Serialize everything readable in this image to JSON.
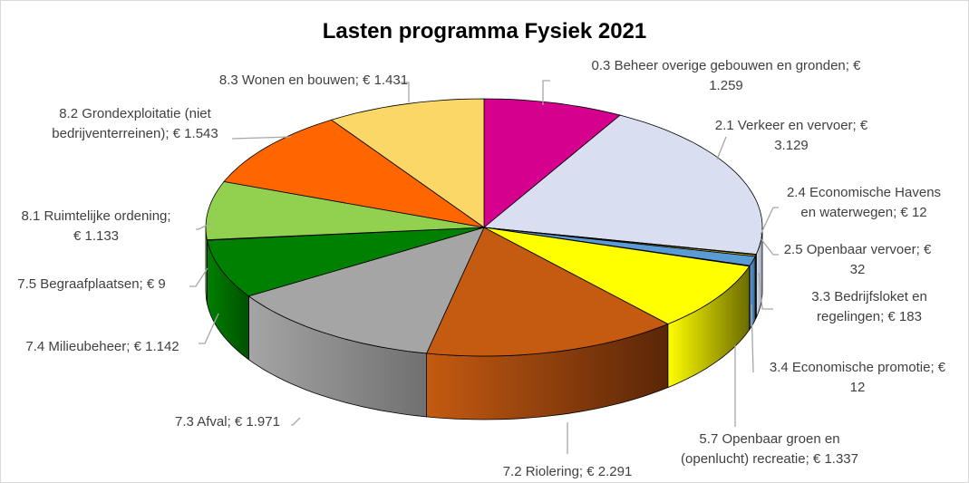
{
  "chart_data": {
    "type": "pie",
    "title": "Lasten programma Fysiek 2021",
    "currency": "€",
    "slices": [
      {
        "label": "0.3 Beheer overige gebouwen en gronden",
        "value": 1259,
        "display": "€ 1.259",
        "color": "#d6008f",
        "side": "#8a005c"
      },
      {
        "label": "2.1 Verkeer en vervoer",
        "value": 3129,
        "display": "€ 3.129",
        "color": "#d9dff0",
        "side": "#9aa0b0"
      },
      {
        "label": "2.4 Economische Havens en waterwegen",
        "value": 12,
        "display": "€ 12",
        "color": "#f0a030",
        "side": "#a06a10"
      },
      {
        "label": "2.5 Openbaar vervoer",
        "value": 32,
        "display": "€ 32",
        "color": "#c8b400",
        "side": "#807300"
      },
      {
        "label": "3.3 Bedrijfsloket en regelingen",
        "value": 183,
        "display": "€ 183",
        "color": "#5b9bd5",
        "side": "#3a6a96"
      },
      {
        "label": "3.4 Economische promotie",
        "value": 12,
        "display": "€ 12",
        "color": "#e0e000",
        "side": "#707000"
      },
      {
        "label": "5.7 Openbaar groen en (openlucht) recreatie",
        "value": 1337,
        "display": "€ 1.337",
        "color": "#ffff00",
        "side": "#6b6b00"
      },
      {
        "label": "7.2 Riolering",
        "value": 2291,
        "display": "€ 2.291",
        "color": "#c55a11",
        "side": "#5a2608"
      },
      {
        "label": "7.3 Afval",
        "value": 1971,
        "display": "€ 1.971",
        "color": "#a5a5a5",
        "side": "#707070"
      },
      {
        "label": "7.4 Milieubeheer",
        "value": 1142,
        "display": "€ 1.142",
        "color": "#008000",
        "side": "#005000"
      },
      {
        "label": "7.5 Begraafplaatsen",
        "value": 9,
        "display": "€ 9",
        "color": "#6a9a30",
        "side": "#3a5a10"
      },
      {
        "label": "8.1 Ruimtelijke ordening",
        "value": 1133,
        "display": "€ 1.133",
        "color": "#92d050",
        "side": "#5a8a20"
      },
      {
        "label": "8.2 Grondexploitatie (niet bedrijventerreinen)",
        "value": 1543,
        "display": "€ 1.543",
        "color": "#ff6600",
        "side": "#a04000"
      },
      {
        "label": "8.3 Wonen en bouwen",
        "value": 1431,
        "display": "€ 1.431",
        "color": "#fad766",
        "side": "#a08a30"
      }
    ],
    "labels_text": [
      [
        "0.3 Beheer overige gebouwen en gronden; €",
        "1.259"
      ],
      [
        "2.1 Verkeer en vervoer; €",
        "3.129"
      ],
      [
        "2.4 Economische Havens",
        "en waterwegen; € 12"
      ],
      [
        "2.5 Openbaar vervoer; €",
        "32"
      ],
      [
        "3.3 Bedrijfsloket en",
        "regelingen; € 183"
      ],
      [
        "3.4 Economische promotie; €",
        "12"
      ],
      [
        "5.7 Openbaar groen en",
        "(openlucht) recreatie; € 1.337"
      ],
      [
        "7.2 Riolering; € 2.291"
      ],
      [
        "7.3 Afval; € 1.971"
      ],
      [
        "7.4 Milieubeheer; € 1.142"
      ],
      [
        "7.5 Begraafplaatsen; € 9"
      ],
      [
        "8.1 Ruimtelijke ordening;",
        "€ 1.133"
      ],
      [
        "8.2 Grondexploitatie (niet",
        "bedrijventerreinen); € 1.543"
      ],
      [
        "8.3 Wonen en bouwen; € 1.431"
      ]
    ]
  }
}
